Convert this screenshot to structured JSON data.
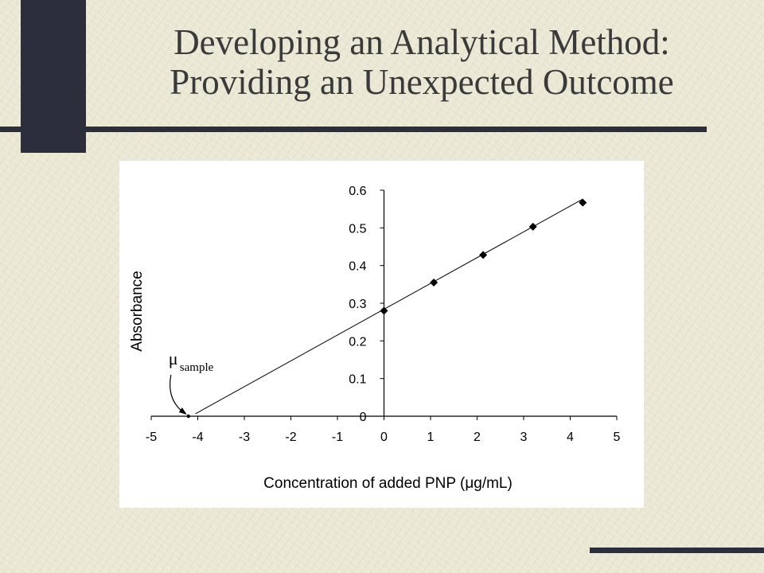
{
  "slide": {
    "title_line1": "Developing an Analytical Method:",
    "title_line2": "Providing an Unexpected Outcome"
  },
  "colors": {
    "dark_bar": "#2c2e3c",
    "background": "#eae7d4",
    "title": "#3a3a3a"
  },
  "chart_data": {
    "type": "scatter",
    "title": "",
    "xlabel": "Concentration of added PNP (μg/mL)",
    "ylabel": "Absorbance",
    "xlim": [
      -5,
      5
    ],
    "ylim": [
      0,
      0.6
    ],
    "x_ticks": [
      "-5",
      "-4",
      "-3",
      "-2",
      "-1",
      "0",
      "1",
      "2",
      "3",
      "4",
      "5"
    ],
    "y_ticks": [
      "0",
      "0.1",
      "0.2",
      "0.3",
      "0.4",
      "0.5",
      "0.6"
    ],
    "points": [
      {
        "x": 0,
        "y": 0.28
      },
      {
        "x": 1.07,
        "y": 0.355
      },
      {
        "x": 2.13,
        "y": 0.428
      },
      {
        "x": 3.2,
        "y": 0.503
      },
      {
        "x": 4.27,
        "y": 0.567
      }
    ],
    "extrapolated_point": {
      "x": -4.2,
      "y": 0
    },
    "fit_line": {
      "x_start": -4.05,
      "x_end": 4.27,
      "y_at_x0": 0.284,
      "slope": 0.0685
    },
    "annotation": {
      "symbol": "μ",
      "subscript": "sample"
    },
    "grid": false
  }
}
